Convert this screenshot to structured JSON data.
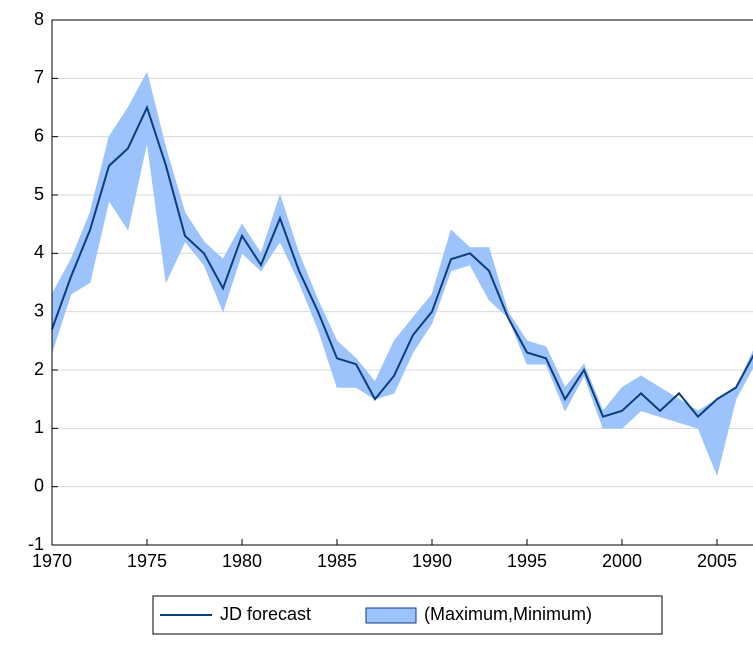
{
  "chart_data": {
    "type": "line",
    "x": [
      1970,
      1971,
      1972,
      1973,
      1974,
      1975,
      1976,
      1977,
      1978,
      1979,
      1980,
      1981,
      1982,
      1983,
      1984,
      1985,
      1986,
      1987,
      1988,
      1989,
      1990,
      1991,
      1992,
      1993,
      1994,
      1995,
      1996,
      1997,
      1998,
      1999,
      2000,
      2001,
      2002,
      2003,
      2004,
      2005,
      2006,
      2007
    ],
    "series": [
      {
        "name": "JD forecast",
        "color": "#0c3d7c",
        "values": [
          2.7,
          3.6,
          4.4,
          5.5,
          5.8,
          6.5,
          5.5,
          4.3,
          4.0,
          3.4,
          4.3,
          3.8,
          4.6,
          3.7,
          3.0,
          2.2,
          2.1,
          1.5,
          1.9,
          2.6,
          3.0,
          3.9,
          4.0,
          3.7,
          2.9,
          2.3,
          2.2,
          1.5,
          2.0,
          1.2,
          1.3,
          1.6,
          1.3,
          1.6,
          1.2,
          1.5,
          1.7,
          2.3
        ]
      }
    ],
    "band": {
      "name": "(Maximum,Minimum)",
      "color": "#9cc3fb",
      "upper": [
        3.3,
        3.9,
        4.7,
        6.0,
        6.5,
        7.1,
        5.8,
        4.7,
        4.2,
        3.9,
        4.5,
        4.0,
        5.0,
        4.0,
        3.2,
        2.5,
        2.2,
        1.8,
        2.5,
        2.9,
        3.3,
        4.4,
        4.1,
        4.1,
        3.0,
        2.5,
        2.4,
        1.7,
        2.1,
        1.3,
        1.7,
        1.9,
        1.7,
        1.5,
        1.3,
        1.5,
        1.7,
        2.4
      ],
      "lower": [
        2.3,
        3.3,
        3.5,
        4.9,
        4.4,
        5.9,
        3.5,
        4.2,
        3.8,
        3.0,
        4.0,
        3.7,
        4.2,
        3.5,
        2.7,
        1.7,
        1.7,
        1.5,
        1.6,
        2.3,
        2.8,
        3.7,
        3.8,
        3.2,
        2.9,
        2.1,
        2.1,
        1.3,
        1.9,
        1.0,
        1.0,
        1.3,
        1.2,
        1.1,
        1.0,
        0.2,
        1.5,
        2.1
      ]
    },
    "xlim": [
      1970,
      2007
    ],
    "xticks": [
      1970,
      1975,
      1980,
      1985,
      1990,
      1995,
      2000,
      2005
    ],
    "ylim": [
      -1,
      8
    ],
    "yticks": [
      -1,
      0,
      1,
      2,
      3,
      4,
      5,
      6,
      7,
      8
    ],
    "grid": true
  }
}
